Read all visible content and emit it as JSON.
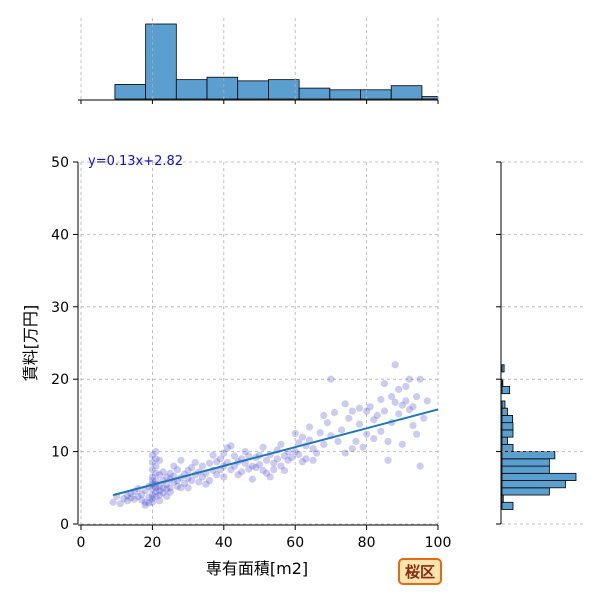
{
  "chart_data": {
    "type": "scatter",
    "xlabel": "専有面積[m2]",
    "ylabel": "賃料[万円]",
    "xlim": [
      0,
      100
    ],
    "ylim": [
      0,
      50
    ],
    "xticks": [
      0,
      20,
      40,
      60,
      80,
      100
    ],
    "yticks": [
      0,
      10,
      20,
      30,
      40,
      50
    ],
    "grid": true,
    "equation_label": "y=0.13x+2.82",
    "regression": {
      "slope": 0.13,
      "intercept": 2.82,
      "x_range": [
        9,
        100
      ]
    },
    "badge": "桜区",
    "colors": {
      "points": "#3434c8",
      "regression_line": "#1f77b4",
      "histogram_fill": "#5a9fd0",
      "badge_border": "#e86a10",
      "badge_fill": "#ffe3b0",
      "equation_text": "#1010d0"
    },
    "marginal_x_histogram": {
      "bin_edges": [
        0,
        9.5,
        18.1,
        26.7,
        35.3,
        43.9,
        52.5,
        61.1,
        69.7,
        78.3,
        86.9,
        95.5,
        100
      ],
      "counts": [
        0,
        6,
        31,
        8,
        9,
        7.5,
        8,
        4.5,
        3.8,
        3.8,
        5.5,
        1
      ]
    },
    "marginal_y_histogram": {
      "bin_edges": [
        2,
        3,
        4,
        5,
        6,
        7,
        8,
        9,
        10,
        11,
        12,
        13,
        14,
        15,
        16,
        17,
        18,
        19,
        20,
        21,
        22
      ],
      "counts": [
        2.6,
        0.3,
        11.2,
        15,
        17.5,
        11.2,
        11.2,
        12.5,
        2.6,
        1.3,
        2.6,
        2.6,
        2.5,
        1.3,
        0.7,
        0,
        1.8,
        0.2,
        0,
        0.5
      ]
    },
    "points": [
      [
        9,
        3.0
      ],
      [
        10,
        3.8
      ],
      [
        11,
        2.8
      ],
      [
        12,
        3.5
      ],
      [
        13,
        3.9
      ],
      [
        13,
        3.2
      ],
      [
        14,
        4.2
      ],
      [
        14,
        3.6
      ],
      [
        15,
        3.4
      ],
      [
        15,
        4.5
      ],
      [
        16,
        3.8
      ],
      [
        16,
        4.9
      ],
      [
        17,
        3.3
      ],
      [
        17,
        4.1
      ],
      [
        18,
        3.0
      ],
      [
        18,
        4.6
      ],
      [
        18,
        2.6
      ],
      [
        19,
        3.7
      ],
      [
        19,
        5.2
      ],
      [
        19,
        2.9
      ],
      [
        20,
        4.0
      ],
      [
        20,
        5.5
      ],
      [
        20,
        6.5
      ],
      [
        20,
        7.5
      ],
      [
        20,
        8.5
      ],
      [
        20,
        9.5
      ],
      [
        20,
        3.5
      ],
      [
        20,
        3.0
      ],
      [
        20,
        4.8
      ],
      [
        20,
        6.0
      ],
      [
        21,
        4.5
      ],
      [
        21,
        5.0
      ],
      [
        21,
        6.0
      ],
      [
        21,
        7.0
      ],
      [
        21,
        8.0
      ],
      [
        21,
        9.0
      ],
      [
        21,
        10.0
      ],
      [
        21,
        3.8
      ],
      [
        21,
        5.5
      ],
      [
        22,
        4.0
      ],
      [
        22,
        5.2
      ],
      [
        22,
        6.8
      ],
      [
        22,
        8.8
      ],
      [
        22,
        3.2
      ],
      [
        22,
        4.6
      ],
      [
        23,
        5.0
      ],
      [
        23,
        6.0
      ],
      [
        23,
        4.3
      ],
      [
        23,
        7.2
      ],
      [
        24,
        5.5
      ],
      [
        24,
        6.5
      ],
      [
        24,
        4.8
      ],
      [
        24,
        3.8
      ],
      [
        25,
        5.0
      ],
      [
        25,
        6.2
      ],
      [
        25,
        7.0
      ],
      [
        25,
        4.4
      ],
      [
        26,
        5.8
      ],
      [
        26,
        6.6
      ],
      [
        26,
        8.0
      ],
      [
        27,
        5.2
      ],
      [
        27,
        6.0
      ],
      [
        27,
        7.5
      ],
      [
        28,
        6.4
      ],
      [
        28,
        5.0
      ],
      [
        28,
        8.8
      ],
      [
        29,
        6.9
      ],
      [
        29,
        5.6
      ],
      [
        30,
        6.3
      ],
      [
        30,
        7.4
      ],
      [
        30,
        5.0
      ],
      [
        31,
        7.8
      ],
      [
        31,
        6.0
      ],
      [
        32,
        6.8
      ],
      [
        32,
        8.5
      ],
      [
        33,
        5.8
      ],
      [
        33,
        7.2
      ],
      [
        34,
        6.5
      ],
      [
        34,
        8.0
      ],
      [
        35,
        7.0
      ],
      [
        35,
        5.5
      ],
      [
        36,
        8.4
      ],
      [
        36,
        6.0
      ],
      [
        37,
        9.5
      ],
      [
        37,
        7.4
      ],
      [
        38,
        6.8
      ],
      [
        38,
        8.6
      ],
      [
        39,
        7.5
      ],
      [
        39,
        9.0
      ],
      [
        40,
        8.0
      ],
      [
        40,
        9.8
      ],
      [
        40,
        6.5
      ],
      [
        41,
        8.5
      ],
      [
        41,
        10.5
      ],
      [
        42,
        10.8
      ],
      [
        42,
        7.5
      ],
      [
        43,
        9.4
      ],
      [
        43,
        8.0
      ],
      [
        44,
        8.6
      ],
      [
        44,
        6.8
      ],
      [
        45,
        9.0
      ],
      [
        45,
        7.2
      ],
      [
        46,
        10.0
      ],
      [
        46,
        8.4
      ],
      [
        47,
        7.6
      ],
      [
        47,
        9.4
      ],
      [
        48,
        8.0
      ],
      [
        48,
        6.2
      ],
      [
        49,
        9.2
      ],
      [
        49,
        7.8
      ],
      [
        50,
        9.5
      ],
      [
        50,
        8.2
      ],
      [
        51,
        7.4
      ],
      [
        51,
        10.6
      ],
      [
        52,
        8.8
      ],
      [
        52,
        7.0
      ],
      [
        53,
        9.6
      ],
      [
        53,
        6.5
      ],
      [
        54,
        8.4
      ],
      [
        54,
        7.5
      ],
      [
        55,
        10.2
      ],
      [
        55,
        9.0
      ],
      [
        56,
        11.0
      ],
      [
        56,
        8.0
      ],
      [
        57,
        9.4
      ],
      [
        57,
        7.4
      ],
      [
        58,
        10.0
      ],
      [
        58,
        8.8
      ],
      [
        59,
        9.2
      ],
      [
        60,
        12.5
      ],
      [
        60,
        10.0
      ],
      [
        61,
        9.6
      ],
      [
        61,
        11.2
      ],
      [
        62,
        8.6
      ],
      [
        62,
        12.0
      ],
      [
        63,
        10.8
      ],
      [
        63,
        9.0
      ],
      [
        64,
        13.4
      ],
      [
        64,
        11.6
      ],
      [
        65,
        8.8
      ],
      [
        65,
        10.4
      ],
      [
        66,
        9.8
      ],
      [
        67,
        12.6
      ],
      [
        68,
        15.0
      ],
      [
        68,
        11.0
      ],
      [
        69,
        14.0
      ],
      [
        70,
        20.0
      ],
      [
        70,
        12.2
      ],
      [
        71,
        15.4
      ],
      [
        72,
        11.4
      ],
      [
        73,
        13.0
      ],
      [
        74,
        16.6
      ],
      [
        74,
        9.8
      ],
      [
        75,
        14.6
      ],
      [
        76,
        15.6
      ],
      [
        76,
        10.4
      ],
      [
        77,
        11.4
      ],
      [
        78,
        16.0
      ],
      [
        78,
        13.8
      ],
      [
        79,
        10.6
      ],
      [
        80,
        15.6
      ],
      [
        80,
        12.4
      ],
      [
        81,
        16.2
      ],
      [
        82,
        14.4
      ],
      [
        82,
        11.8
      ],
      [
        83,
        15.0
      ],
      [
        84,
        17.2
      ],
      [
        84,
        12.8
      ],
      [
        85,
        19.4
      ],
      [
        85,
        15.6
      ],
      [
        86,
        8.8
      ],
      [
        86,
        11.4
      ],
      [
        87,
        17.6
      ],
      [
        87,
        14.0
      ],
      [
        88,
        22.0
      ],
      [
        88,
        16.8
      ],
      [
        89,
        18.6
      ],
      [
        89,
        15.2
      ],
      [
        90,
        16.4
      ],
      [
        90,
        11.0
      ],
      [
        91,
        19.0
      ],
      [
        91,
        17.0
      ],
      [
        92,
        20.0
      ],
      [
        92,
        15.8
      ],
      [
        93,
        16.2
      ],
      [
        93,
        13.6
      ],
      [
        94,
        17.6
      ],
      [
        94,
        12.4
      ],
      [
        95,
        20.0
      ],
      [
        95,
        8.0
      ],
      [
        96,
        14.6
      ],
      [
        97,
        17.0
      ]
    ]
  }
}
